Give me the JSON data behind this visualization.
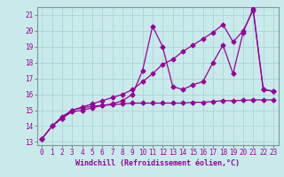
{
  "xlabel": "Windchill (Refroidissement éolien,°C)",
  "bg_color": "#c8eaea",
  "line_color": "#990099",
  "grid_color": "#b0d8d8",
  "xlim": [
    -0.5,
    23.5
  ],
  "ylim": [
    12.8,
    21.5
  ],
  "yticks": [
    13,
    14,
    15,
    16,
    17,
    18,
    19,
    20,
    21
  ],
  "xticks": [
    0,
    1,
    2,
    3,
    4,
    5,
    6,
    7,
    8,
    9,
    10,
    11,
    12,
    13,
    14,
    15,
    16,
    17,
    18,
    19,
    20,
    21,
    22,
    23
  ],
  "line1_x": [
    0,
    1,
    2,
    3,
    4,
    5,
    6,
    7,
    8,
    9,
    10,
    11,
    12,
    13,
    14,
    15,
    16,
    17,
    18,
    19,
    20,
    21,
    22,
    23
  ],
  "line1_y": [
    13.2,
    14.0,
    14.5,
    15.0,
    15.15,
    15.25,
    15.3,
    15.35,
    15.4,
    15.45,
    15.45,
    15.45,
    15.45,
    15.45,
    15.45,
    15.5,
    15.5,
    15.55,
    15.6,
    15.6,
    15.62,
    15.65,
    15.65,
    15.65
  ],
  "line2_x": [
    0,
    1,
    2,
    3,
    4,
    5,
    6,
    7,
    8,
    9,
    10,
    11,
    12,
    13,
    14,
    15,
    16,
    17,
    18,
    19,
    20,
    21,
    22,
    23
  ],
  "line2_y": [
    13.2,
    14.0,
    14.5,
    14.9,
    15.0,
    15.15,
    15.3,
    15.4,
    15.6,
    16.0,
    17.5,
    20.3,
    19.0,
    16.5,
    16.3,
    16.6,
    16.8,
    18.0,
    19.1,
    17.3,
    19.9,
    21.4,
    16.3,
    16.2
  ],
  "line3_x": [
    0,
    1,
    2,
    3,
    4,
    5,
    6,
    7,
    8,
    9,
    10,
    11,
    12,
    13,
    14,
    15,
    16,
    17,
    18,
    19,
    20,
    21,
    22,
    23
  ],
  "line3_y": [
    13.2,
    14.0,
    14.6,
    15.0,
    15.2,
    15.4,
    15.6,
    15.8,
    16.0,
    16.3,
    16.8,
    17.3,
    17.9,
    18.2,
    18.7,
    19.1,
    19.5,
    19.9,
    20.4,
    19.3,
    20.0,
    21.3,
    16.3,
    16.2
  ]
}
